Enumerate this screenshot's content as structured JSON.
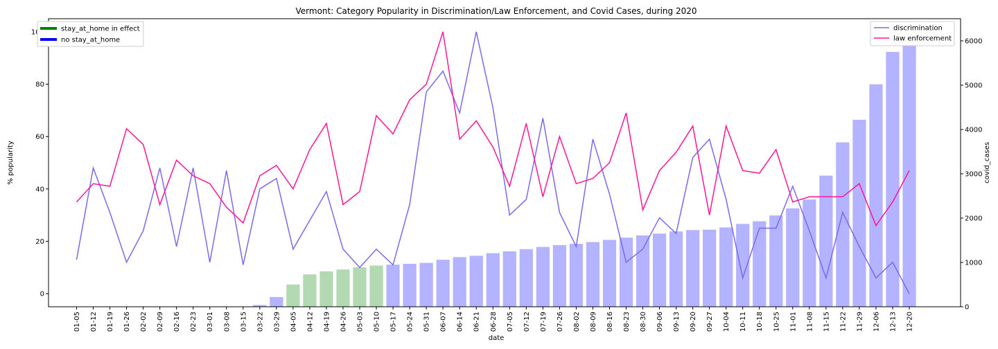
{
  "chart_data": {
    "type": "bar+line",
    "title": "Vermont: Category Popularity in Discrimination/Law Enforcement, and Covid Cases, during 2020",
    "xlabel": "date",
    "ylabel_left": "% popularity",
    "ylabel_right": "covid_cases",
    "ylim_left": [
      -5,
      105
    ],
    "ylim_right": [
      0,
      6500
    ],
    "yticks_left": [
      0,
      20,
      40,
      60,
      80,
      100
    ],
    "yticks_right": [
      0,
      1000,
      2000,
      3000,
      4000,
      5000,
      6000
    ],
    "categories": [
      "01-05",
      "01-12",
      "01-19",
      "01-26",
      "02-02",
      "02-09",
      "02-16",
      "02-23",
      "03-01",
      "03-08",
      "03-15",
      "03-22",
      "03-29",
      "04-05",
      "04-12",
      "04-19",
      "04-26",
      "05-03",
      "05-10",
      "05-17",
      "05-24",
      "05-31",
      "06-07",
      "06-14",
      "06-21",
      "06-28",
      "07-05",
      "07-12",
      "07-19",
      "07-26",
      "08-02",
      "08-09",
      "08-16",
      "08-23",
      "08-30",
      "09-06",
      "09-13",
      "09-20",
      "09-27",
      "10-04",
      "10-11",
      "10-18",
      "10-25",
      "11-01",
      "11-08",
      "11-15",
      "11-22",
      "11-29",
      "12-06",
      "12-13",
      "12-20"
    ],
    "covid_cases": [
      0,
      0,
      0,
      0,
      0,
      0,
      0,
      0,
      0,
      0,
      0,
      40,
      220,
      500,
      730,
      800,
      840,
      890,
      930,
      950,
      970,
      990,
      1060,
      1120,
      1150,
      1210,
      1250,
      1300,
      1350,
      1390,
      1420,
      1460,
      1510,
      1560,
      1610,
      1650,
      1700,
      1730,
      1740,
      1790,
      1870,
      1930,
      2060,
      2220,
      2420,
      2960,
      3710,
      4220,
      5020,
      5750,
      6420
    ],
    "stay_at_home": [
      false,
      false,
      false,
      false,
      false,
      false,
      false,
      false,
      false,
      false,
      false,
      false,
      false,
      true,
      true,
      true,
      true,
      true,
      true,
      false,
      false,
      false,
      false,
      false,
      false,
      false,
      false,
      false,
      false,
      false,
      false,
      false,
      false,
      false,
      false,
      false,
      false,
      false,
      false,
      false,
      false,
      false,
      false,
      false,
      false,
      false,
      false,
      false,
      false,
      false,
      false
    ],
    "series": [
      {
        "name": "discrimination",
        "color": "#7b68ee",
        "values": [
          13,
          48,
          31,
          12,
          24,
          48,
          18,
          48,
          12,
          47,
          11,
          40,
          44,
          17,
          28,
          39,
          17,
          10,
          17,
          11,
          34,
          77,
          85,
          69,
          100,
          71,
          30,
          36,
          67,
          31,
          18,
          59,
          38,
          12,
          17,
          29,
          23,
          52,
          59,
          36,
          6,
          25,
          25,
          41,
          24,
          6,
          31,
          18,
          6,
          12,
          0
        ]
      },
      {
        "name": "law enforcement",
        "color": "#ff1493",
        "values": [
          35,
          42,
          41,
          63,
          57,
          34,
          51,
          45,
          42,
          33,
          27,
          45,
          49,
          40,
          55,
          65,
          34,
          39,
          68,
          61,
          74,
          80,
          100,
          59,
          66,
          56,
          41,
          65,
          37,
          60,
          42,
          44,
          50,
          69,
          32,
          47,
          54,
          64,
          30,
          64,
          47,
          46,
          55,
          35,
          37,
          37,
          37,
          42,
          26,
          35,
          47
        ]
      }
    ],
    "bar_legend": [
      {
        "label": "stay_at_home in effect",
        "color": "#008000"
      },
      {
        "label": "no stay_at_home",
        "color": "#0000ff"
      }
    ],
    "bar_colors": {
      "stay": "#b3d9b3",
      "none": "#b3b3ff"
    },
    "legend_left_placement": "upper-left",
    "legend_right_placement": "upper-right"
  }
}
